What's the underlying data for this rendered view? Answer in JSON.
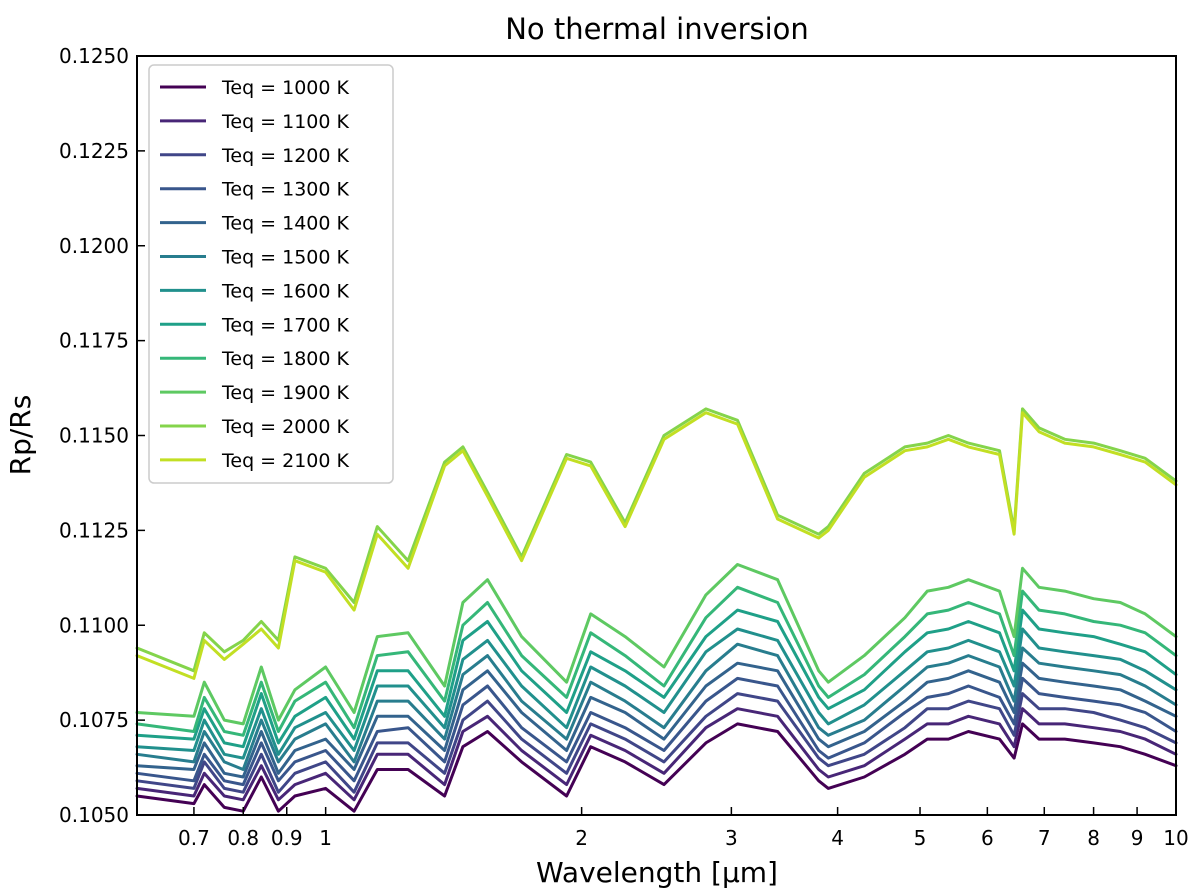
{
  "chart_data": {
    "type": "line",
    "title": "No thermal inversion",
    "xlabel": "Wavelength [μm]",
    "ylabel": "Rp/Rs",
    "xscale": "log",
    "xlim": [
      0.6,
      10
    ],
    "ylim": [
      0.105,
      0.125
    ],
    "xticks": [
      0.7,
      0.8,
      0.9,
      1,
      2,
      3,
      4,
      5,
      6,
      7,
      8,
      9,
      10
    ],
    "xtick_labels": [
      "0.7",
      "0.8",
      "0.9",
      "1",
      "2",
      "3",
      "4",
      "5",
      "6",
      "7",
      "8",
      "9",
      "10"
    ],
    "yticks": [
      0.105,
      0.1075,
      0.11,
      0.1125,
      0.115,
      0.1175,
      0.12,
      0.1225,
      0.125
    ],
    "ytick_labels": [
      "0.1050",
      "0.1075",
      "0.1100",
      "0.1125",
      "0.1150",
      "0.1175",
      "0.1200",
      "0.1225",
      "0.1250"
    ],
    "legend_position": "top-left",
    "wavelengths": [
      0.6,
      0.7,
      0.72,
      0.76,
      0.8,
      0.84,
      0.88,
      0.92,
      1.0,
      1.08,
      1.15,
      1.25,
      1.38,
      1.45,
      1.55,
      1.7,
      1.92,
      2.05,
      2.25,
      2.5,
      2.8,
      3.05,
      3.4,
      3.8,
      3.9,
      4.3,
      4.8,
      5.1,
      5.4,
      5.7,
      6.2,
      6.45,
      6.6,
      6.9,
      7.4,
      8.0,
      8.6,
      9.2,
      10.0
    ],
    "series": [
      {
        "name": "Teq = 1000 K",
        "color": "#440154",
        "values": [
          0.1055,
          0.1053,
          0.1058,
          0.1052,
          0.1051,
          0.106,
          0.1051,
          0.1055,
          0.1057,
          0.1051,
          0.1062,
          0.1062,
          0.1055,
          0.1068,
          0.1072,
          0.1064,
          0.1055,
          0.1068,
          0.1064,
          0.1058,
          0.1069,
          0.1074,
          0.1072,
          0.1059,
          0.1057,
          0.106,
          0.1066,
          0.107,
          0.107,
          0.1072,
          0.107,
          0.1065,
          0.1074,
          0.107,
          0.107,
          0.1069,
          0.1068,
          0.1066,
          0.1063
        ]
      },
      {
        "name": "Teq = 1100 K",
        "color": "#482677",
        "values": [
          0.1057,
          0.1055,
          0.1061,
          0.1055,
          0.1054,
          0.1063,
          0.1054,
          0.1058,
          0.1061,
          0.1054,
          0.1066,
          0.1066,
          0.1058,
          0.1072,
          0.1076,
          0.1067,
          0.1058,
          0.1071,
          0.1067,
          0.1061,
          0.1073,
          0.1078,
          0.1076,
          0.1062,
          0.106,
          0.1063,
          0.107,
          0.1074,
          0.1074,
          0.1076,
          0.1074,
          0.1068,
          0.1078,
          0.1074,
          0.1074,
          0.1073,
          0.1072,
          0.107,
          0.1066
        ]
      },
      {
        "name": "Teq = 1200 K",
        "color": "#404688",
        "values": [
          0.1059,
          0.1057,
          0.1064,
          0.1057,
          0.1056,
          0.1066,
          0.1056,
          0.1061,
          0.1064,
          0.1056,
          0.1069,
          0.1069,
          0.1061,
          0.1075,
          0.108,
          0.107,
          0.1061,
          0.1074,
          0.107,
          0.1064,
          0.1076,
          0.1082,
          0.108,
          0.1065,
          0.1063,
          0.1066,
          0.1073,
          0.1078,
          0.1078,
          0.108,
          0.1078,
          0.1071,
          0.1082,
          0.1078,
          0.1078,
          0.1077,
          0.1075,
          0.1073,
          0.1069
        ]
      },
      {
        "name": "Teq = 1300 K",
        "color": "#39568c",
        "values": [
          0.1061,
          0.1059,
          0.1066,
          0.1059,
          0.1058,
          0.1069,
          0.1059,
          0.1064,
          0.1067,
          0.1059,
          0.1072,
          0.1073,
          0.1064,
          0.1079,
          0.1084,
          0.1073,
          0.1064,
          0.1077,
          0.1073,
          0.1067,
          0.108,
          0.1086,
          0.1084,
          0.1067,
          0.1065,
          0.1069,
          0.1077,
          0.1081,
          0.1082,
          0.1084,
          0.1081,
          0.1074,
          0.1086,
          0.1082,
          0.1081,
          0.108,
          0.1079,
          0.1077,
          0.1072
        ]
      },
      {
        "name": "Teq = 1400 K",
        "color": "#33638d",
        "values": [
          0.1063,
          0.1062,
          0.1069,
          0.1061,
          0.106,
          0.1072,
          0.1061,
          0.1067,
          0.107,
          0.1062,
          0.1076,
          0.1076,
          0.1067,
          0.1083,
          0.1088,
          0.1077,
          0.1067,
          0.1081,
          0.1077,
          0.107,
          0.1084,
          0.109,
          0.1088,
          0.107,
          0.1068,
          0.1072,
          0.108,
          0.1085,
          0.1086,
          0.1088,
          0.1085,
          0.1077,
          0.109,
          0.1086,
          0.1085,
          0.1084,
          0.1083,
          0.108,
          0.1076
        ]
      },
      {
        "name": "Teq = 1500 K",
        "color": "#287d8e",
        "values": [
          0.1066,
          0.1064,
          0.1072,
          0.1064,
          0.1062,
          0.1075,
          0.1064,
          0.107,
          0.1074,
          0.1064,
          0.108,
          0.108,
          0.107,
          0.1087,
          0.1092,
          0.108,
          0.107,
          0.1085,
          0.108,
          0.1073,
          0.1088,
          0.1095,
          0.1092,
          0.1073,
          0.1071,
          0.1075,
          0.1084,
          0.1089,
          0.109,
          0.1092,
          0.1089,
          0.108,
          0.1094,
          0.109,
          0.1089,
          0.1088,
          0.1087,
          0.1084,
          0.1079
        ]
      },
      {
        "name": "Teq = 1600 K",
        "color": "#21908d",
        "values": [
          0.1068,
          0.1067,
          0.1075,
          0.1066,
          0.1065,
          0.1078,
          0.1066,
          0.1073,
          0.1077,
          0.1067,
          0.1084,
          0.1084,
          0.1073,
          0.1091,
          0.1096,
          0.1084,
          0.1073,
          0.1089,
          0.1084,
          0.1077,
          0.1093,
          0.1099,
          0.1096,
          0.1077,
          0.1074,
          0.1079,
          0.1088,
          0.1093,
          0.1094,
          0.1096,
          0.1093,
          0.1084,
          0.1099,
          0.1094,
          0.1093,
          0.1092,
          0.1091,
          0.1088,
          0.1083
        ]
      },
      {
        "name": "Teq = 1700 K",
        "color": "#1fa088",
        "values": [
          0.1071,
          0.107,
          0.1078,
          0.1069,
          0.1068,
          0.1082,
          0.1069,
          0.1076,
          0.1081,
          0.107,
          0.1088,
          0.1088,
          0.1076,
          0.1096,
          0.1101,
          0.1088,
          0.1077,
          0.1093,
          0.1088,
          0.1081,
          0.1097,
          0.1104,
          0.1101,
          0.1081,
          0.1078,
          0.1083,
          0.1093,
          0.1098,
          0.1099,
          0.1101,
          0.1098,
          0.1088,
          0.1104,
          0.1099,
          0.1098,
          0.1097,
          0.1095,
          0.1093,
          0.1087
        ]
      },
      {
        "name": "Teq = 1800 K",
        "color": "#35b779",
        "values": [
          0.1074,
          0.1072,
          0.1081,
          0.1072,
          0.1071,
          0.1085,
          0.1072,
          0.108,
          0.1085,
          0.1073,
          0.1092,
          0.1093,
          0.108,
          0.11,
          0.1106,
          0.1092,
          0.1081,
          0.1098,
          0.1092,
          0.1084,
          0.1102,
          0.111,
          0.1106,
          0.1084,
          0.1081,
          0.1087,
          0.1097,
          0.1103,
          0.1104,
          0.1106,
          0.1103,
          0.1092,
          0.1109,
          0.1104,
          0.1103,
          0.1101,
          0.11,
          0.1098,
          0.1092
        ]
      },
      {
        "name": "Teq = 1900 K",
        "color": "#5ec962",
        "values": [
          0.1077,
          0.1076,
          0.1085,
          0.1075,
          0.1074,
          0.1089,
          0.1075,
          0.1083,
          0.1089,
          0.1077,
          0.1097,
          0.1098,
          0.1084,
          0.1106,
          0.1112,
          0.1097,
          0.1085,
          0.1103,
          0.1097,
          0.1089,
          0.1108,
          0.1116,
          0.1112,
          0.1088,
          0.1085,
          0.1092,
          0.1102,
          0.1109,
          0.111,
          0.1112,
          0.1109,
          0.1097,
          0.1115,
          0.111,
          0.1109,
          0.1107,
          0.1106,
          0.1103,
          0.1097
        ]
      },
      {
        "name": "Teq = 2000 K",
        "color": "#84d44b",
        "values": [
          0.1094,
          0.1088,
          0.1098,
          0.1093,
          0.1096,
          0.1101,
          0.1096,
          0.1118,
          0.1115,
          0.1106,
          0.1126,
          0.1117,
          0.1143,
          0.1147,
          0.1135,
          0.1118,
          0.1145,
          0.1143,
          0.1127,
          0.115,
          0.1157,
          0.1154,
          0.1129,
          0.1124,
          0.1126,
          0.114,
          0.1147,
          0.1148,
          0.115,
          0.1148,
          0.1146,
          0.1125,
          0.1157,
          0.1152,
          0.1149,
          0.1148,
          0.1146,
          0.1144,
          0.1138
        ]
      },
      {
        "name": "Teq = 2100 K",
        "color": "#c2df23",
        "values": [
          0.1092,
          0.1086,
          0.1096,
          0.1091,
          0.1095,
          0.1099,
          0.1094,
          0.1117,
          0.1114,
          0.1104,
          0.1124,
          0.1115,
          0.1142,
          0.1146,
          0.1134,
          0.1117,
          0.1144,
          0.1142,
          0.1126,
          0.1149,
          0.1156,
          0.1153,
          0.1128,
          0.1123,
          0.1125,
          0.1139,
          0.1146,
          0.1147,
          0.1149,
          0.1147,
          0.1145,
          0.1124,
          0.1156,
          0.1151,
          0.1148,
          0.1147,
          0.1145,
          0.1143,
          0.1137
        ]
      }
    ]
  }
}
